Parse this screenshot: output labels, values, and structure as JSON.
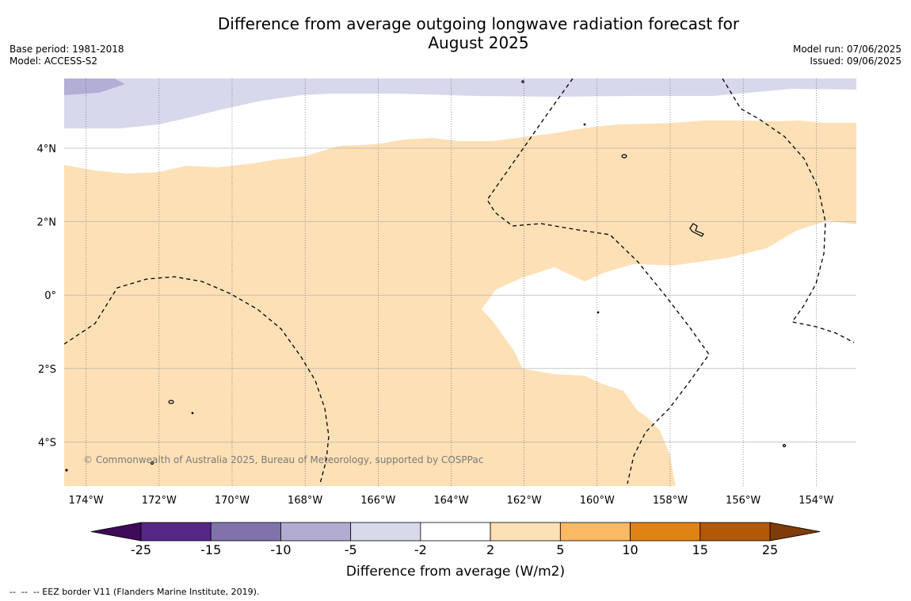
{
  "header": {
    "title_line1": "Difference from average outgoing longwave radiation forecast for",
    "title_line2": "August 2025",
    "base_period": "Base period: 1981-2018",
    "model": "Model: ACCESS-S2",
    "model_run": "Model run: 07/06/2025",
    "issued": "Issued: 09/06/2025"
  },
  "map": {
    "lon_range": [
      -174.6,
      -152.9
    ],
    "lat_range": [
      -5.2,
      5.9
    ],
    "lon_ticks": [
      {
        "value": -174,
        "label": "174°W"
      },
      {
        "value": -172,
        "label": "172°W"
      },
      {
        "value": -170,
        "label": "170°W"
      },
      {
        "value": -168,
        "label": "168°W"
      },
      {
        "value": -166,
        "label": "166°W"
      },
      {
        "value": -164,
        "label": "164°W"
      },
      {
        "value": -162,
        "label": "162°W"
      },
      {
        "value": -160,
        "label": "160°W"
      },
      {
        "value": -158,
        "label": "158°W"
      },
      {
        "value": -156,
        "label": "156°W"
      },
      {
        "value": -154,
        "label": "154°W"
      }
    ],
    "lat_ticks": [
      {
        "value": 4,
        "label": "4°N"
      },
      {
        "value": 2,
        "label": "2°N"
      },
      {
        "value": 0,
        "label": "0°"
      },
      {
        "value": -2,
        "label": "2°S"
      },
      {
        "value": -4,
        "label": "4°S"
      }
    ],
    "copyright": "© Commonwealth of Australia 2025, Bureau of Meteorology, supported by COSPPac",
    "colors": {
      "ocean_white": "#ffffff",
      "light_orange": "#fde0b6",
      "light_purple": "#d8d8ec",
      "mid_purple": "#b3aed6",
      "grid": "#999999"
    }
  },
  "colorbar": {
    "label": "Difference from average (W/m2)",
    "ticks": [
      "-25",
      "-15",
      "-10",
      "-5",
      "-2",
      "2",
      "5",
      "10",
      "15",
      "25"
    ],
    "under_color": "#3f0a5a",
    "over_color": "#7f3b08",
    "colors": [
      "#542788",
      "#8073ac",
      "#b2abd2",
      "#d8daeb",
      "#ffffff",
      "#fee0b6",
      "#fdb863",
      "#e08214",
      "#b35806"
    ]
  },
  "footnote": "--  --  -- EEZ border V11 (Flanders Marine Institute, 2019)."
}
